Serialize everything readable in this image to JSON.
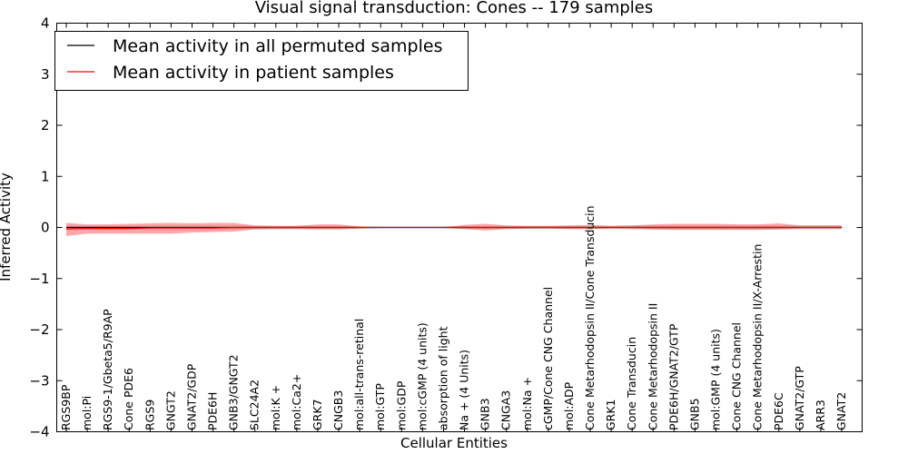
{
  "chart_data": {
    "type": "line",
    "title": "Visual signal transduction: Cones -- 179 samples",
    "xlabel": "Cellular Entities",
    "ylabel": "Inferred Activity",
    "ylim": [
      -4,
      4
    ],
    "yticks": [
      -4,
      -3,
      -2,
      -1,
      0,
      1,
      2,
      3,
      4
    ],
    "legend_position": "top-left",
    "categories": [
      "RGS9BP",
      "mol:Pi",
      "RGS9-1/Gbeta5/R9AP",
      "Cone PDE6",
      "RGS9",
      "GNGT2",
      "GNAT2/GDP",
      "PDE6H",
      "GNB3/GNGT2",
      "SLC24A2",
      "mol:K +",
      "mol:Ca2+",
      "GRK7",
      "CNGB3",
      "mol:all-trans-retinal",
      "mol:GTP",
      "mol:GDP",
      "mol:cGMP (4 units)",
      "absorption of light",
      "Na + (4 Units)",
      "GNB3",
      "CNGA3",
      "mol:Na +",
      "cGMP/Cone CNG Channel",
      "mol:ADP",
      "Cone Metarhodopsin II/Cone Transducin",
      "GRK1",
      "Cone Transducin",
      "Cone Metarhodopsin II",
      "PDE6H/GNAT2/GTP",
      "GNB5",
      "mol:GMP (4 units)",
      "Cone CNG Channel",
      "Cone Metarhodopsin II/X-Arrestin",
      "PDE6C",
      "GNAT2/GTP",
      "ARR3",
      "GNAT2"
    ],
    "series": [
      {
        "name": "Mean activity in all permuted samples",
        "color": "#000000",
        "values": [
          0.0,
          0.0,
          0.0,
          0.0,
          0.0,
          0.0,
          0.0,
          0.0,
          0.0,
          0.0,
          0.0,
          0.0,
          0.0,
          0.0,
          0.0,
          0.0,
          0.0,
          0.0,
          0.0,
          0.0,
          0.0,
          0.0,
          0.0,
          0.0,
          0.0,
          0.0,
          0.0,
          0.0,
          0.0,
          0.0,
          0.0,
          0.0,
          0.0,
          0.0,
          0.0,
          0.0,
          0.0,
          0.0
        ],
        "band_lower": [
          -0.04,
          -0.04,
          -0.04,
          -0.04,
          -0.04,
          -0.04,
          -0.04,
          -0.04,
          -0.04,
          -0.03,
          -0.03,
          -0.03,
          -0.03,
          -0.03,
          -0.02,
          -0.02,
          -0.02,
          -0.02,
          -0.02,
          -0.03,
          -0.03,
          -0.03,
          -0.03,
          -0.03,
          -0.03,
          -0.03,
          -0.03,
          -0.04,
          -0.04,
          -0.04,
          -0.04,
          -0.04,
          -0.04,
          -0.04,
          -0.04,
          -0.04,
          -0.04,
          -0.04
        ],
        "band_upper": [
          0.04,
          0.04,
          0.04,
          0.04,
          0.04,
          0.04,
          0.04,
          0.04,
          0.04,
          0.03,
          0.03,
          0.03,
          0.03,
          0.03,
          0.02,
          0.02,
          0.02,
          0.02,
          0.02,
          0.03,
          0.03,
          0.03,
          0.03,
          0.03,
          0.03,
          0.03,
          0.03,
          0.04,
          0.04,
          0.04,
          0.04,
          0.04,
          0.04,
          0.04,
          0.04,
          0.04,
          0.04,
          0.04
        ]
      },
      {
        "name": "Mean activity in patient samples",
        "color": "#ff0000",
        "values": [
          -0.03,
          -0.02,
          -0.02,
          -0.02,
          -0.01,
          -0.01,
          -0.01,
          -0.01,
          0.0,
          0.0,
          0.0,
          0.0,
          0.0,
          0.0,
          0.0,
          0.0,
          0.0,
          0.0,
          0.0,
          0.0,
          0.0,
          0.0,
          0.0,
          0.0,
          0.0,
          0.0,
          0.0,
          0.0,
          0.0,
          0.0,
          0.0,
          0.0,
          0.0,
          0.0,
          0.0,
          0.0,
          0.0,
          0.0
        ],
        "band_lower": [
          -0.17,
          -0.12,
          -0.12,
          -0.12,
          -0.12,
          -0.12,
          -0.1,
          -0.09,
          -0.08,
          -0.04,
          -0.03,
          -0.03,
          -0.04,
          -0.04,
          -0.02,
          -0.01,
          -0.01,
          -0.01,
          -0.01,
          -0.03,
          -0.06,
          -0.03,
          -0.02,
          -0.02,
          -0.03,
          -0.03,
          -0.02,
          -0.02,
          -0.04,
          -0.05,
          -0.05,
          -0.05,
          -0.05,
          -0.05,
          -0.04,
          -0.02,
          -0.02,
          -0.02
        ],
        "band_upper": [
          0.09,
          0.06,
          0.06,
          0.07,
          0.08,
          0.09,
          0.08,
          0.09,
          0.09,
          0.04,
          0.03,
          0.03,
          0.06,
          0.06,
          0.02,
          0.01,
          0.01,
          0.01,
          0.01,
          0.05,
          0.07,
          0.04,
          0.03,
          0.03,
          0.04,
          0.05,
          0.03,
          0.04,
          0.06,
          0.07,
          0.07,
          0.07,
          0.06,
          0.06,
          0.08,
          0.04,
          0.04,
          0.04
        ]
      }
    ]
  }
}
